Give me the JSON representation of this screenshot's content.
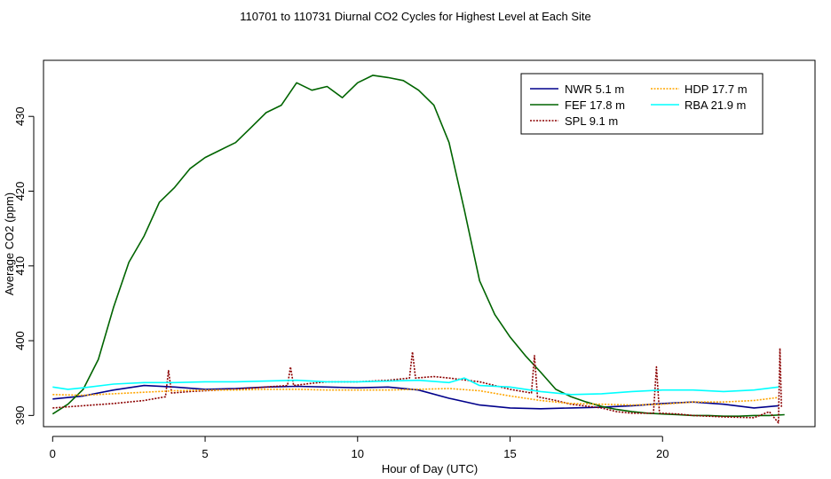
{
  "chart_data": {
    "type": "line",
    "title": "110701  to  110731 Diurnal CO2 Cycles for Highest Level at Each Site",
    "xlabel": "Hour of Day (UTC)",
    "ylabel": "Average CO2 (ppm)",
    "xlim": [
      -0.3,
      25.0
    ],
    "ylim": [
      388.5,
      437.5
    ],
    "xticks": [
      0,
      5,
      10,
      15,
      20
    ],
    "yticks": [
      390,
      400,
      410,
      420,
      430
    ],
    "grid": false,
    "legend_position": "top-right",
    "series": [
      {
        "name": "NWR   5.1 m",
        "color": "#00008b",
        "style": "solid",
        "x": [
          0,
          1,
          2,
          3,
          4,
          5,
          6,
          7,
          8,
          9,
          10,
          11,
          12,
          13,
          14,
          15,
          16,
          17,
          18,
          19,
          20,
          21,
          22,
          23,
          23.8
        ],
        "y": [
          392.2,
          392.6,
          393.4,
          394.0,
          393.8,
          393.5,
          393.6,
          393.8,
          393.9,
          393.8,
          393.7,
          393.8,
          393.4,
          392.3,
          391.4,
          391.0,
          390.9,
          391.0,
          391.1,
          391.3,
          391.6,
          391.8,
          391.5,
          391.0,
          391.3
        ]
      },
      {
        "name": "FEF   17.8 m",
        "color": "#006400",
        "style": "solid",
        "x": [
          0,
          0.5,
          1,
          1.5,
          2,
          2.5,
          3,
          3.5,
          4,
          4.5,
          5,
          5.5,
          6,
          6.5,
          7,
          7.5,
          8,
          8.5,
          9,
          9.5,
          10,
          10.5,
          11,
          11.5,
          12,
          12.5,
          13,
          13.5,
          14,
          14.5,
          15,
          15.5,
          16,
          16.5,
          17,
          17.5,
          18,
          18.5,
          19,
          19.5,
          20,
          20.5,
          21,
          21.5,
          22,
          22.5,
          23,
          23.5,
          24
        ],
        "y": [
          390.2,
          391.5,
          393.5,
          397.5,
          404.5,
          410.5,
          414.0,
          418.5,
          420.5,
          423.0,
          424.5,
          425.5,
          426.5,
          428.5,
          430.5,
          431.5,
          434.5,
          433.5,
          434.0,
          432.5,
          434.5,
          435.5,
          435.2,
          434.8,
          433.5,
          431.5,
          426.5,
          417.5,
          408.0,
          403.5,
          400.5,
          398.0,
          395.8,
          393.5,
          392.5,
          391.8,
          391.2,
          390.8,
          390.5,
          390.3,
          390.2,
          390.1,
          390.0,
          390.0,
          389.9,
          389.9,
          390.0,
          390.0,
          390.1
        ]
      },
      {
        "name": "SPL   9.1 m",
        "color": "#8b0000",
        "style": "dotted",
        "x": [
          0,
          1,
          2,
          3,
          3.7,
          3.8,
          3.9,
          4.5,
          5,
          6,
          7,
          7.7,
          7.8,
          7.9,
          8.5,
          9,
          10,
          11,
          11.7,
          11.8,
          11.9,
          12.5,
          13,
          14,
          15,
          15.7,
          15.8,
          15.9,
          16.5,
          17,
          18,
          18.5,
          19,
          19.7,
          19.8,
          19.9,
          20.5,
          21,
          22,
          23,
          23.5,
          23.8,
          23.85,
          23.9
        ],
        "y": [
          391.0,
          391.3,
          391.6,
          392.0,
          392.5,
          396.0,
          393.0,
          393.2,
          393.3,
          393.5,
          393.8,
          394.0,
          396.5,
          394.0,
          394.3,
          394.5,
          394.5,
          394.7,
          395.0,
          398.5,
          395.0,
          395.2,
          395.0,
          394.5,
          393.5,
          393.0,
          398.0,
          392.5,
          392.0,
          391.5,
          391.0,
          390.5,
          390.3,
          390.3,
          396.5,
          390.3,
          390.2,
          390.0,
          389.8,
          389.7,
          390.5,
          389.0,
          399.0,
          391.0
        ]
      },
      {
        "name": "HDP   17.7 m",
        "color": "#ffa500",
        "style": "dotted",
        "x": [
          0,
          1,
          2,
          3,
          4,
          5,
          6,
          7,
          8,
          9,
          10,
          11,
          12,
          13,
          14,
          15,
          16,
          17,
          18,
          19,
          20,
          21,
          22,
          23,
          23.8
        ],
        "y": [
          392.8,
          392.7,
          392.9,
          393.1,
          393.3,
          393.4,
          393.4,
          393.5,
          393.5,
          393.4,
          393.4,
          393.4,
          393.5,
          393.6,
          393.3,
          392.6,
          392.0,
          391.6,
          391.5,
          391.4,
          391.5,
          391.8,
          391.8,
          392.0,
          392.4
        ]
      },
      {
        "name": "RBA   21.9 m",
        "color": "#00ffff",
        "style": "solid",
        "x": [
          0,
          0.5,
          1,
          2,
          3,
          4,
          5,
          6,
          7,
          8,
          9,
          10,
          11,
          12,
          13,
          13.5,
          14,
          15,
          16,
          17,
          18,
          19,
          20,
          21,
          22,
          23,
          23.8
        ],
        "y": [
          393.8,
          393.5,
          393.7,
          394.2,
          394.4,
          394.4,
          394.5,
          394.5,
          394.6,
          394.7,
          394.5,
          394.5,
          394.6,
          394.7,
          394.4,
          395.0,
          394.0,
          393.8,
          393.2,
          392.8,
          392.9,
          393.2,
          393.4,
          393.4,
          393.2,
          393.4,
          393.8
        ]
      }
    ]
  }
}
